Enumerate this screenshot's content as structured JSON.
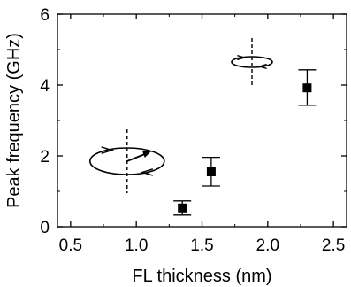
{
  "chart_data": {
    "type": "scatter",
    "title": "",
    "xlabel": "FL thickness (nm)",
    "ylabel": "Peak frequency (GHz)",
    "xlim": [
      0.4,
      2.6
    ],
    "ylim": [
      0,
      6
    ],
    "xticks": [
      0.5,
      1.0,
      1.5,
      2.0,
      2.5
    ],
    "xtick_labels": [
      "0.5",
      "1.0",
      "1.5",
      "2.0",
      "2.5"
    ],
    "yticks": [
      0,
      2,
      4,
      6
    ],
    "ytick_labels": [
      "0",
      "2",
      "4",
      "6"
    ],
    "grid": false,
    "legend": "none",
    "marker": "filled-square",
    "series": [
      {
        "points": [
          {
            "x": 1.35,
            "y": 0.53,
            "err_low": 0.33,
            "err_high": 0.73
          },
          {
            "x": 1.57,
            "y": 1.55,
            "err_low": 1.15,
            "err_high": 1.96
          },
          {
            "x": 2.3,
            "y": 3.92,
            "err_low": 3.43,
            "err_high": 4.43
          }
        ]
      }
    ],
    "annotations": [
      {
        "kind": "precession-orbit",
        "size": "large",
        "x": 0.93,
        "y": 1.85,
        "has_moment_arrow": true
      },
      {
        "kind": "precession-orbit",
        "size": "small",
        "x": 1.88,
        "y": 4.65,
        "has_moment_arrow": false
      }
    ],
    "colors": {
      "marks": "#000000",
      "background": "#ffffff"
    }
  }
}
